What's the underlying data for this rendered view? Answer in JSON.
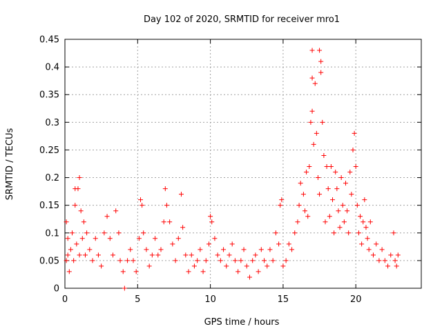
{
  "chart_data": {
    "type": "scatter",
    "title": "Day 102 of 2020, SRMTID for receiver mro1",
    "xlabel": "GPS time / hours",
    "ylabel": "SRMTID / TECUs",
    "xlim": [
      0,
      24.5
    ],
    "ylim": [
      0,
      0.45
    ],
    "x_ticks": [
      0,
      5,
      10,
      15,
      20
    ],
    "x_tick_labels": [
      "0",
      "5",
      "10",
      "15",
      "20"
    ],
    "y_ticks": [
      0,
      0.05,
      0.1,
      0.15,
      0.2,
      0.25,
      0.3,
      0.35,
      0.4,
      0.45
    ],
    "y_tick_labels": [
      "0",
      "0.05",
      "0.1",
      "0.15",
      "0.2",
      "0.25",
      "0.3",
      "0.35",
      "0.4",
      "0.45"
    ],
    "grid": true,
    "marker": "+",
    "color": "#ff0000",
    "series": [
      {
        "name": "mro1",
        "points": [
          [
            0.1,
            0.12
          ],
          [
            0.1,
            0.05
          ],
          [
            0.2,
            0.06
          ],
          [
            0.2,
            0.09
          ],
          [
            0.3,
            0.03
          ],
          [
            0.4,
            0.07
          ],
          [
            0.5,
            0.1
          ],
          [
            0.6,
            0.05
          ],
          [
            0.7,
            0.15
          ],
          [
            0.7,
            0.18
          ],
          [
            0.8,
            0.08
          ],
          [
            0.9,
            0.18
          ],
          [
            1.0,
            0.2
          ],
          [
            1.0,
            0.06
          ],
          [
            1.1,
            0.14
          ],
          [
            1.2,
            0.09
          ],
          [
            1.3,
            0.12
          ],
          [
            1.4,
            0.06
          ],
          [
            1.5,
            0.1
          ],
          [
            1.7,
            0.07
          ],
          [
            1.9,
            0.05
          ],
          [
            2.1,
            0.09
          ],
          [
            2.3,
            0.06
          ],
          [
            2.5,
            0.04
          ],
          [
            2.7,
            0.1
          ],
          [
            2.9,
            0.13
          ],
          [
            3.1,
            0.09
          ],
          [
            3.3,
            0.06
          ],
          [
            3.5,
            0.14
          ],
          [
            3.7,
            0.1
          ],
          [
            3.8,
            0.05
          ],
          [
            4.0,
            0.03
          ],
          [
            4.1,
            0.0
          ],
          [
            4.3,
            0.05
          ],
          [
            4.5,
            0.07
          ],
          [
            4.7,
            0.05
          ],
          [
            4.9,
            0.03
          ],
          [
            5.1,
            0.09
          ],
          [
            5.2,
            0.16
          ],
          [
            5.3,
            0.15
          ],
          [
            5.4,
            0.1
          ],
          [
            5.6,
            0.07
          ],
          [
            5.8,
            0.04
          ],
          [
            6.0,
            0.06
          ],
          [
            6.2,
            0.09
          ],
          [
            6.4,
            0.06
          ],
          [
            6.6,
            0.07
          ],
          [
            6.8,
            0.12
          ],
          [
            6.9,
            0.18
          ],
          [
            7.0,
            0.15
          ],
          [
            7.2,
            0.12
          ],
          [
            7.4,
            0.08
          ],
          [
            7.6,
            0.05
          ],
          [
            7.8,
            0.09
          ],
          [
            8.0,
            0.17
          ],
          [
            8.1,
            0.11
          ],
          [
            8.3,
            0.06
          ],
          [
            8.5,
            0.03
          ],
          [
            8.7,
            0.06
          ],
          [
            8.9,
            0.04
          ],
          [
            9.1,
            0.05
          ],
          [
            9.3,
            0.07
          ],
          [
            9.5,
            0.03
          ],
          [
            9.7,
            0.05
          ],
          [
            9.9,
            0.08
          ],
          [
            10.0,
            0.13
          ],
          [
            10.1,
            0.12
          ],
          [
            10.3,
            0.09
          ],
          [
            10.5,
            0.06
          ],
          [
            10.7,
            0.05
          ],
          [
            10.9,
            0.07
          ],
          [
            11.1,
            0.04
          ],
          [
            11.3,
            0.06
          ],
          [
            11.5,
            0.08
          ],
          [
            11.7,
            0.05
          ],
          [
            11.9,
            0.03
          ],
          [
            12.1,
            0.05
          ],
          [
            12.3,
            0.07
          ],
          [
            12.5,
            0.04
          ],
          [
            12.7,
            0.02
          ],
          [
            12.9,
            0.05
          ],
          [
            13.1,
            0.06
          ],
          [
            13.3,
            0.03
          ],
          [
            13.5,
            0.07
          ],
          [
            13.7,
            0.05
          ],
          [
            13.9,
            0.04
          ],
          [
            14.1,
            0.07
          ],
          [
            14.3,
            0.05
          ],
          [
            14.5,
            0.1
          ],
          [
            14.7,
            0.08
          ],
          [
            14.8,
            0.15
          ],
          [
            14.9,
            0.16
          ],
          [
            15.0,
            0.04
          ],
          [
            15.2,
            0.05
          ],
          [
            15.4,
            0.08
          ],
          [
            15.6,
            0.07
          ],
          [
            15.8,
            0.1
          ],
          [
            16.0,
            0.12
          ],
          [
            16.1,
            0.15
          ],
          [
            16.2,
            0.19
          ],
          [
            16.4,
            0.17
          ],
          [
            16.5,
            0.14
          ],
          [
            16.6,
            0.21
          ],
          [
            16.7,
            0.13
          ],
          [
            16.8,
            0.22
          ],
          [
            16.9,
            0.3
          ],
          [
            17.0,
            0.43
          ],
          [
            17.0,
            0.38
          ],
          [
            17.0,
            0.32
          ],
          [
            17.1,
            0.26
          ],
          [
            17.2,
            0.37
          ],
          [
            17.3,
            0.28
          ],
          [
            17.4,
            0.2
          ],
          [
            17.5,
            0.17
          ],
          [
            17.5,
            0.43
          ],
          [
            17.6,
            0.39
          ],
          [
            17.6,
            0.41
          ],
          [
            17.7,
            0.3
          ],
          [
            17.8,
            0.24
          ],
          [
            17.9,
            0.12
          ],
          [
            18.0,
            0.22
          ],
          [
            18.1,
            0.18
          ],
          [
            18.2,
            0.13
          ],
          [
            18.3,
            0.22
          ],
          [
            18.4,
            0.16
          ],
          [
            18.5,
            0.1
          ],
          [
            18.6,
            0.21
          ],
          [
            18.7,
            0.18
          ],
          [
            18.8,
            0.14
          ],
          [
            18.9,
            0.11
          ],
          [
            19.0,
            0.2
          ],
          [
            19.1,
            0.15
          ],
          [
            19.2,
            0.12
          ],
          [
            19.3,
            0.19
          ],
          [
            19.4,
            0.14
          ],
          [
            19.5,
            0.1
          ],
          [
            19.6,
            0.21
          ],
          [
            19.7,
            0.17
          ],
          [
            19.8,
            0.25
          ],
          [
            19.9,
            0.28
          ],
          [
            20.0,
            0.22
          ],
          [
            20.1,
            0.15
          ],
          [
            20.2,
            0.1
          ],
          [
            20.3,
            0.13
          ],
          [
            20.4,
            0.08
          ],
          [
            20.5,
            0.12
          ],
          [
            20.6,
            0.16
          ],
          [
            20.7,
            0.11
          ],
          [
            20.8,
            0.09
          ],
          [
            20.9,
            0.07
          ],
          [
            21.0,
            0.12
          ],
          [
            21.2,
            0.06
          ],
          [
            21.4,
            0.08
          ],
          [
            21.6,
            0.05
          ],
          [
            21.8,
            0.07
          ],
          [
            22.0,
            0.05
          ],
          [
            22.2,
            0.04
          ],
          [
            22.4,
            0.06
          ],
          [
            22.6,
            0.1
          ],
          [
            22.7,
            0.05
          ],
          [
            22.8,
            0.04
          ],
          [
            22.9,
            0.06
          ]
        ]
      }
    ]
  }
}
